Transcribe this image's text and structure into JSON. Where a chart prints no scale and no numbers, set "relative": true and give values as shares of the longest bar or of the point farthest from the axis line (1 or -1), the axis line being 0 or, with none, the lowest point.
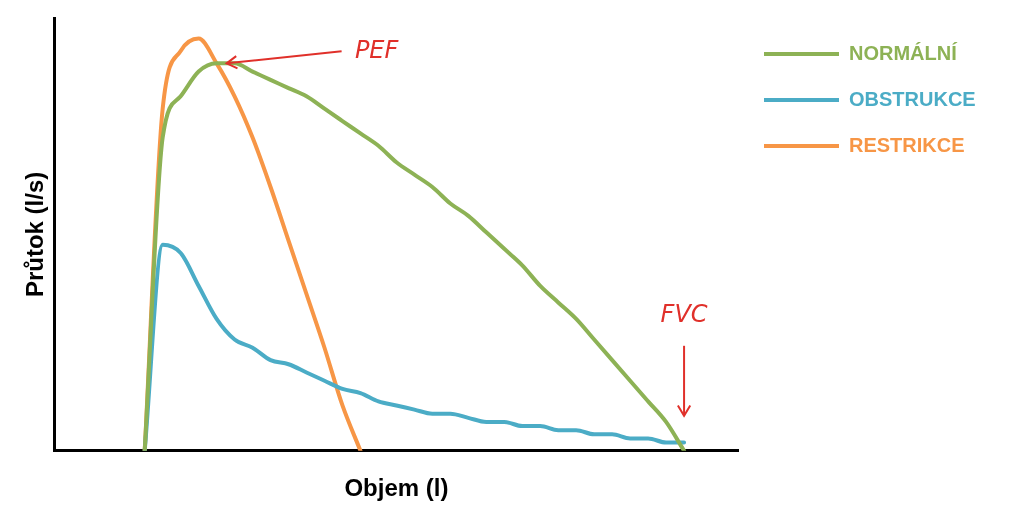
{
  "chart_data": {
    "type": "line",
    "relative": true,
    "xlabel": "Objem (l)",
    "ylabel": "Průtok (l/s)",
    "grid": false,
    "legend": "top right",
    "categories": [
      null,
      null,
      null,
      null,
      null,
      null,
      null,
      null,
      null,
      null,
      null,
      null,
      null,
      null,
      null,
      null,
      null,
      null,
      null,
      null,
      null,
      null,
      null,
      null,
      null,
      null,
      null,
      null,
      null,
      null,
      null,
      null,
      null,
      null,
      null,
      null,
      null,
      null,
      null
    ],
    "series": [
      {
        "name": "NORMÁLNÍ",
        "color": "#8db255",
        "values": [
          null,
          null,
          null,
          null,
          null,
          0,
          0.76,
          0.86,
          0.92,
          0.94,
          0.94,
          0.92,
          0.9,
          0.88,
          0.86,
          0.83,
          0.8,
          0.77,
          0.74,
          0.7,
          0.67,
          0.64,
          0.6,
          0.57,
          0.53,
          0.49,
          0.45,
          0.4,
          0.36,
          0.32,
          0.27,
          0.22,
          0.17,
          0.12,
          0.07,
          0,
          null,
          null,
          null
        ]
      },
      {
        "name": "OBSTRUKCE",
        "color": "#4bacc6",
        "values": [
          null,
          null,
          null,
          null,
          null,
          0,
          0.5,
          0.48,
          0.4,
          0.32,
          0.27,
          0.25,
          0.22,
          0.21,
          0.19,
          0.17,
          0.15,
          0.14,
          0.12,
          0.11,
          0.1,
          0.09,
          0.09,
          0.08,
          0.07,
          0.07,
          0.06,
          0.06,
          0.05,
          0.05,
          0.04,
          0.04,
          0.03,
          0.03,
          0.02,
          0.02,
          null,
          null,
          null
        ]
      },
      {
        "name": "RESTRIKCE",
        "color": "#f79646",
        "values": [
          null,
          null,
          null,
          null,
          null,
          0,
          0.83,
          0.97,
          1,
          0.94,
          0.86,
          0.76,
          0.64,
          0.51,
          0.38,
          0.25,
          0.11,
          0,
          null,
          null,
          null,
          null,
          null,
          null,
          null,
          null,
          null,
          null,
          null,
          null,
          null,
          null,
          null,
          null,
          null,
          null,
          null,
          null,
          null
        ]
      }
    ],
    "annotations": [
      "PEF",
      "FVC"
    ]
  }
}
